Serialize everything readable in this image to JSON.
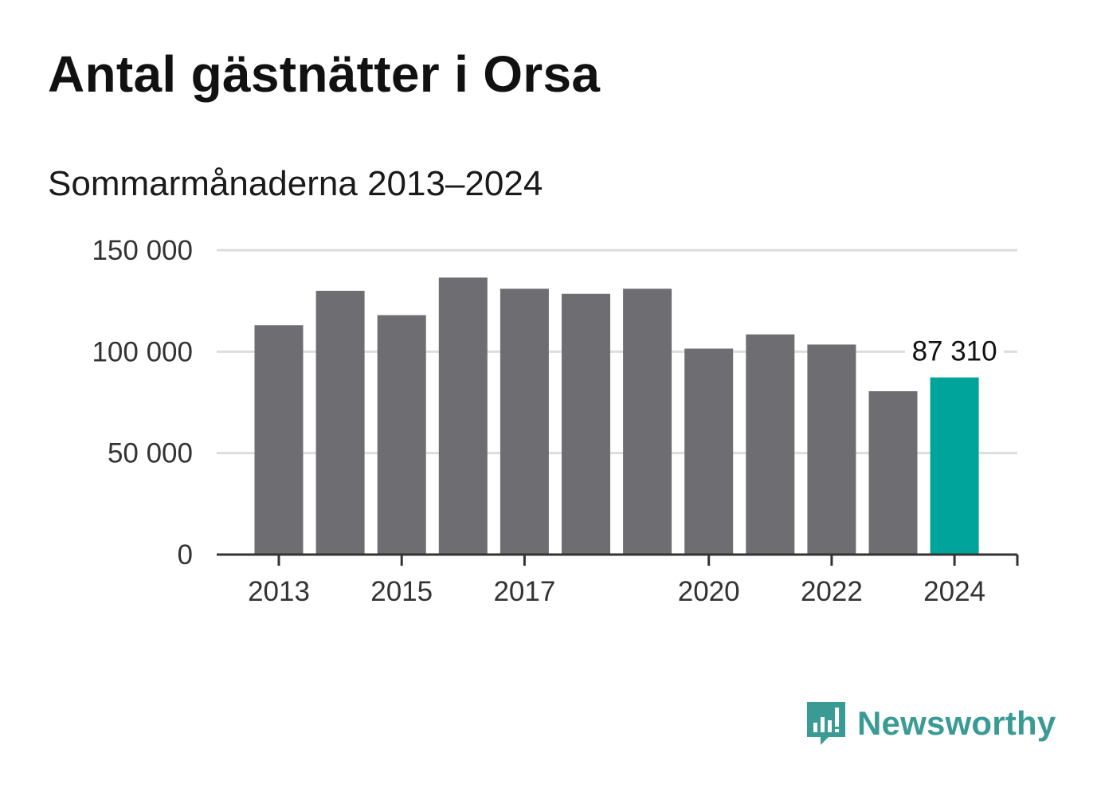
{
  "header": {
    "title": "Antal gästnätter i Orsa",
    "subtitle": "Sommarmånaderna 2013–2024"
  },
  "brand": {
    "name": "Newsworthy",
    "color": "#3a9b94",
    "icon": "newsworthy-chart-icon"
  },
  "colors": {
    "bar": "#6e6d72",
    "highlight": "#00a49a",
    "grid": "#dddddd",
    "axis": "#333333"
  },
  "chart_data": {
    "type": "bar",
    "categories": [
      "2013",
      "2014",
      "2015",
      "2016",
      "2017",
      "2018",
      "2019",
      "2020",
      "2021",
      "2022",
      "2023",
      "2024"
    ],
    "values": [
      113000,
      130000,
      118000,
      136500,
      131000,
      128500,
      131000,
      101500,
      108500,
      103500,
      80500,
      87310
    ],
    "highlight_index": 11,
    "highlight_label": "87 310",
    "xticks": [
      "2013",
      "2015",
      "2017",
      "2020",
      "2022",
      "2024"
    ],
    "yticks": [
      0,
      50000,
      100000,
      150000
    ],
    "ytick_labels": [
      "0",
      "50 000",
      "100 000",
      "150 000"
    ],
    "ylim": [
      0,
      150000
    ],
    "grid": true,
    "title": "Antal gästnätter i Orsa",
    "subtitle": "Sommarmånaderna 2013–2024",
    "xlabel": "",
    "ylabel": ""
  }
}
